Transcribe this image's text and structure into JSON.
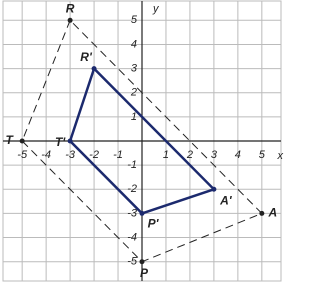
{
  "chart_data": {
    "type": "polygon",
    "x_label": "x",
    "y_label": "y",
    "xlim": [
      -5.8,
      5.8
    ],
    "ylim": [
      -5.8,
      5.8
    ],
    "xticks": [
      -5,
      -4,
      -3,
      -2,
      -1,
      1,
      2,
      3,
      4,
      5
    ],
    "yticks": [
      -5,
      -4,
      -3,
      -2,
      -1,
      1,
      2,
      3,
      4,
      5
    ],
    "grid": true,
    "series": [
      {
        "point_labels": [
          "R",
          "T",
          "P",
          "A"
        ],
        "x": [
          -3,
          -5,
          0,
          5
        ],
        "y": [
          5,
          0,
          -5,
          -3
        ],
        "color": "#222222",
        "dashed": true
      },
      {
        "point_labels": [
          "R'",
          "T'",
          "P'",
          "A'"
        ],
        "x": [
          -2,
          -3,
          0,
          3
        ],
        "y": [
          3,
          0,
          -3,
          -2
        ],
        "color": "#1c2a6e",
        "dashed": false
      }
    ]
  }
}
